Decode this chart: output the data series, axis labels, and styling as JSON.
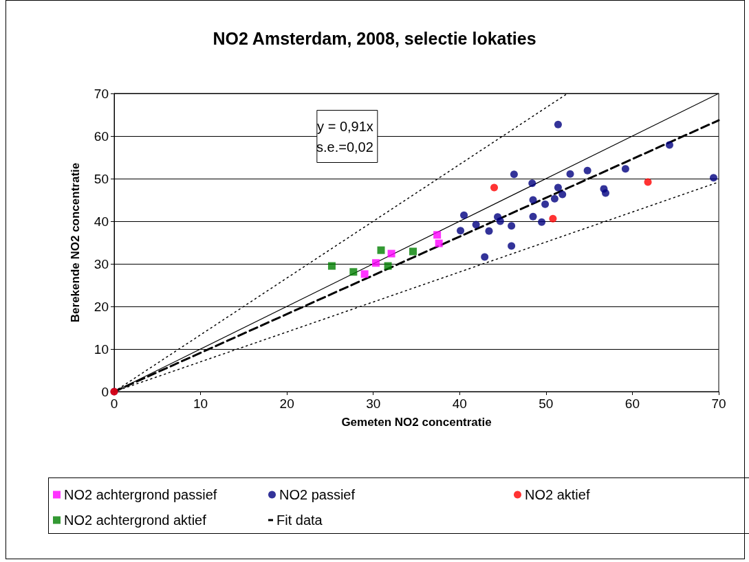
{
  "chart_data": {
    "type": "scatter",
    "title": "NO2 Amsterdam, 2008, selectie lokaties",
    "xlabel": "Gemeten NO2 concentratie",
    "ylabel": "Berekende NO2 concentratie",
    "xlim": [
      0,
      70
    ],
    "xticks": [
      0,
      10,
      20,
      30,
      40,
      50,
      60,
      70
    ],
    "ylim": [
      0,
      70
    ],
    "yticks": [
      0,
      10,
      20,
      30,
      40,
      50,
      60,
      70
    ],
    "grid": "y",
    "legend": "bottom",
    "annotations": [
      "y = 0,91x",
      "s.e.=0,02"
    ],
    "series": [
      {
        "name": "NO2 achtergrond passief",
        "color": "#ff00ff",
        "marker": "square",
        "x": [
          29.0,
          30.3,
          32.1,
          37.4,
          37.6
        ],
        "values": [
          27.6,
          30.2,
          32.4,
          36.8,
          34.8
        ]
      },
      {
        "name": "NO2 passief",
        "color": "#000080",
        "marker": "circle",
        "x": [
          0,
          51.4,
          64.3,
          69.4,
          59.2,
          54.8,
          52.8,
          46.3,
          48.4,
          51.4,
          51.9,
          51.0,
          56.7,
          56.9,
          48.5,
          49.6,
          49.9,
          48.5,
          49.5,
          44.4,
          44.7,
          46.0,
          46.0,
          40.5,
          41.9,
          40.1,
          43.4,
          42.9
        ],
        "values": [
          0,
          62.7,
          57.9,
          50.2,
          52.3,
          51.9,
          51.1,
          51.0,
          48.9,
          47.9,
          46.3,
          45.3,
          47.6,
          46.6,
          45.0,
          null,
          44.0,
          41.1,
          39.8,
          41.0,
          40.0,
          38.9,
          34.2,
          41.4,
          39.2,
          37.8,
          37.7,
          31.6
        ]
      },
      {
        "name": "NO2 aktief",
        "color": "#ff0000",
        "marker": "circle",
        "x": [
          0,
          44.0,
          50.8,
          61.8
        ],
        "values": [
          0,
          47.9,
          40.6,
          49.2
        ]
      },
      {
        "name": "NO2 achtergrond aktief",
        "color": "#008000",
        "marker": "square",
        "x": [
          25.2,
          27.7,
          30.9,
          31.7,
          34.6
        ],
        "values": [
          29.5,
          28.1,
          33.2,
          29.5,
          32.9
        ]
      },
      {
        "name": "Fit data",
        "type": "line",
        "color": "#000000",
        "line_style": "dashed",
        "marker": "none",
        "x": [
          0,
          70
        ],
        "values": [
          0,
          63.7
        ]
      },
      {
        "type": "line",
        "color": "#000000",
        "line_style": "solid",
        "marker": "none",
        "x": [
          0,
          70
        ],
        "values": [
          0,
          70
        ]
      },
      {
        "type": "line",
        "color": "#000000",
        "line_style": "dotted",
        "marker": "none",
        "x": [
          0,
          52.5
        ],
        "values": [
          0,
          70
        ]
      },
      {
        "type": "line",
        "color": "#000000",
        "line_style": "dotted",
        "marker": "none",
        "x": [
          0,
          20,
          70
        ],
        "values": [
          0,
          14,
          49.2
        ]
      }
    ]
  }
}
